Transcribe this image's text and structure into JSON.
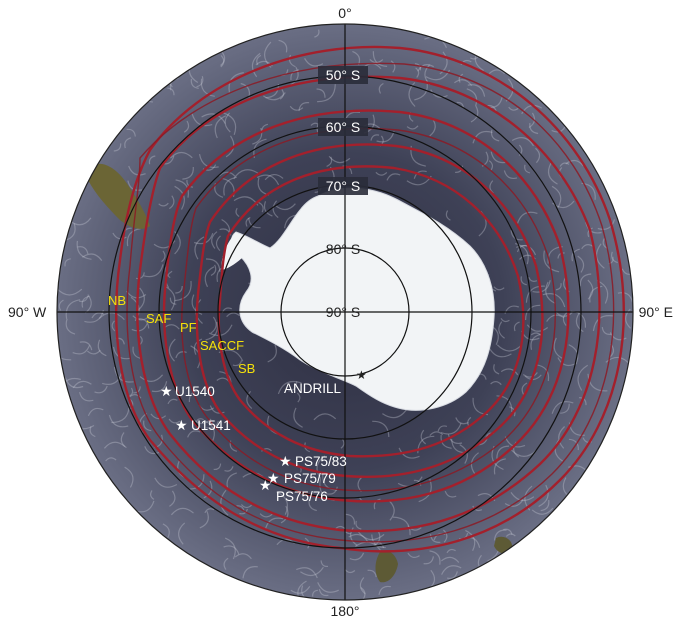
{
  "map": {
    "projection": "south-polar stereographic",
    "colors": {
      "ocean": "#4a4d63",
      "antarctica": "#f2f4f6",
      "fronts": "#a3202c",
      "front_labels": "#f5e10a",
      "land": "#6b6535"
    },
    "meridian_labels": {
      "top": "0°",
      "left": "90° W",
      "right": "90° E",
      "bottom": "180°"
    },
    "latitude_labels": [
      "50° S",
      "60° S",
      "70° S",
      "80° S",
      "90° S"
    ],
    "fronts": [
      {
        "abbr": "NB"
      },
      {
        "abbr": "SAF"
      },
      {
        "abbr": "PF"
      },
      {
        "abbr": "SACCF"
      },
      {
        "abbr": "SB"
      }
    ],
    "sites": [
      {
        "name": "U1540",
        "icon": "star-icon"
      },
      {
        "name": "U1541",
        "icon": "star-icon"
      },
      {
        "name": "PS75/83",
        "icon": "star-icon"
      },
      {
        "name": "PS75/79",
        "icon": "star-icon"
      },
      {
        "name": "PS75/76",
        "icon": "star-icon"
      },
      {
        "name": "ANDRILL",
        "icon": "star-icon"
      }
    ]
  }
}
